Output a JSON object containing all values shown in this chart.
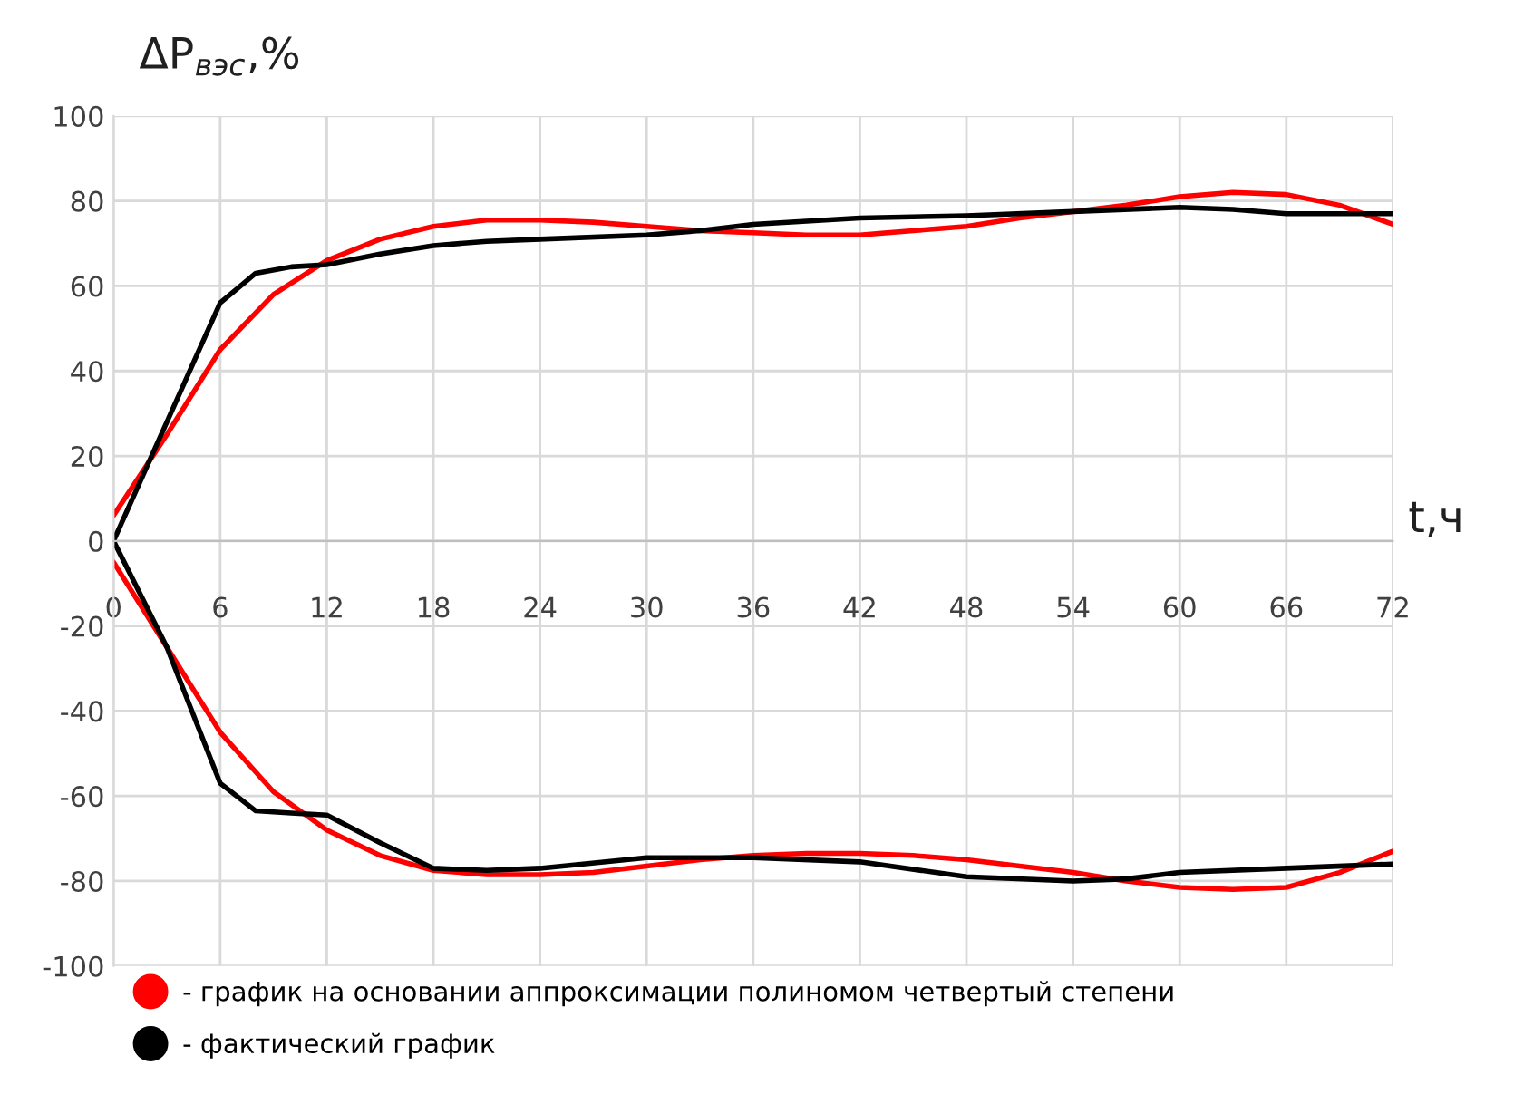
{
  "chart_data": {
    "type": "line",
    "ylabel": "ΔP$_{вэс}$,%",
    "xlabel": "t,ч",
    "xlim": [
      0,
      72
    ],
    "xticks": [
      0,
      6,
      12,
      18,
      24,
      30,
      36,
      42,
      48,
      54,
      60,
      66,
      72
    ],
    "ylim": [
      -100,
      100
    ],
    "yticks": [
      -100,
      -80,
      -60,
      -40,
      -20,
      0,
      20,
      40,
      60,
      80,
      100
    ],
    "grid": true,
    "legend": "bottom",
    "marker": "none",
    "line_style": "solid",
    "series": [
      {
        "name": "- график на основании аппроксимации полиномом четвертый степени",
        "color": "#ff0000",
        "x": [
          0,
          3,
          6,
          9,
          12,
          15,
          18,
          21,
          24,
          27,
          30,
          33,
          36,
          39,
          42,
          45,
          48,
          51,
          54,
          57,
          60,
          63,
          66,
          69,
          72
        ],
        "values": [
          6,
          25,
          45,
          58,
          66,
          71,
          74,
          75.5,
          75.5,
          75,
          74,
          73,
          72.5,
          72,
          72,
          73,
          74,
          76,
          77.5,
          79,
          81,
          82,
          81.5,
          79,
          74.5
        ]
      },
      {
        "name": "- фактический график",
        "color": "#000000",
        "x": [
          0,
          3,
          6,
          8,
          10,
          12,
          15,
          18,
          21,
          24,
          30,
          33,
          36,
          42,
          48,
          54,
          60,
          63,
          66,
          72
        ],
        "values": [
          0,
          28,
          56,
          63,
          64.5,
          65,
          67.5,
          69.5,
          70.5,
          71,
          72,
          73,
          74.5,
          76,
          76.5,
          77.5,
          78.5,
          78,
          77,
          77
        ]
      },
      {
        "color": "#ff0000",
        "x": [
          0,
          3,
          6,
          9,
          12,
          15,
          18,
          21,
          24,
          27,
          30,
          33,
          36,
          39,
          42,
          45,
          48,
          51,
          54,
          57,
          60,
          63,
          66,
          69,
          72
        ],
        "values": [
          -5,
          -25,
          -45,
          -59,
          -68,
          -74,
          -77.5,
          -78.5,
          -78.5,
          -78,
          -76.5,
          -75,
          -74,
          -73.5,
          -73.5,
          -74,
          -75,
          -76.5,
          -78,
          -80,
          -81.5,
          -82,
          -81.5,
          -78,
          -73
        ]
      },
      {
        "color": "#000000",
        "x": [
          0,
          3,
          6,
          8,
          10,
          12,
          15,
          18,
          21,
          24,
          30,
          36,
          42,
          48,
          54,
          57,
          60,
          66,
          72
        ],
        "values": [
          0,
          -25,
          -57,
          -63.5,
          -64,
          -64.5,
          -71,
          -77,
          -77.5,
          -77,
          -74.5,
          -74.5,
          -75.5,
          -79,
          -80,
          -79.5,
          -78,
          -77,
          -76
        ]
      }
    ]
  }
}
